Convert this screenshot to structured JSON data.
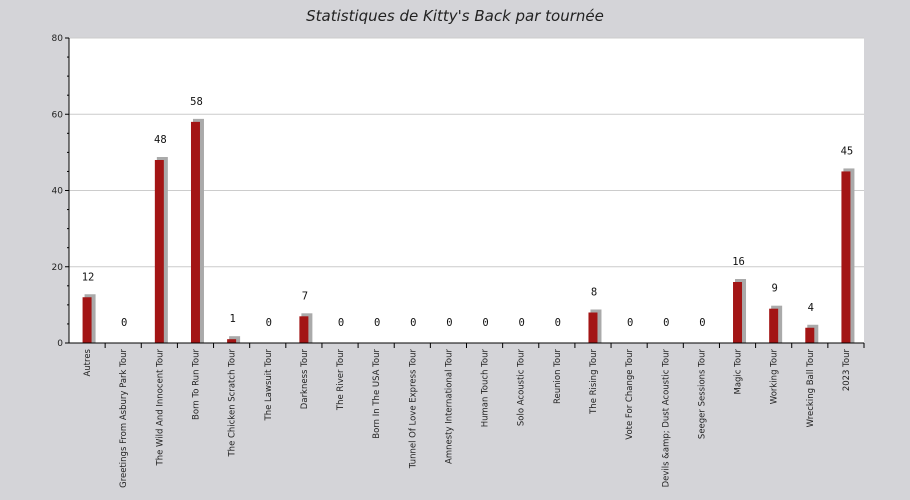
{
  "chart_data": {
    "type": "bar",
    "title": "Statistiques de Kitty's Back par tournée",
    "xlabel": "",
    "ylabel": "",
    "ylim": [
      0,
      80
    ],
    "yticks": [
      "0",
      "20",
      "40",
      "60",
      "80"
    ],
    "grid": "horizontal",
    "categories": [
      "Autres",
      "Greetings From Asbury Park Tour",
      "The Wild And Innocent Tour",
      "Born To Run Tour",
      "The Chicken Scratch Tour",
      "The Lawsuit Tour",
      "Darkness Tour",
      "The River Tour",
      "Born In The USA Tour",
      "Tunnel Of Love Express Tour",
      "Amnesty International Tour",
      "Human Touch Tour",
      "Solo Acoustic Tour",
      "Reunion Tour",
      "The Rising Tour",
      "Vote For Change Tour",
      "Devils &amp; Dust Acoustic Tour",
      "Seeger Sessions Tour",
      "Magic Tour",
      "Working Tour",
      "Wrecking Ball Tour",
      "2023 Tour"
    ],
    "values": [
      12,
      0,
      48,
      58,
      1,
      0,
      7,
      0,
      0,
      0,
      0,
      0,
      0,
      0,
      8,
      0,
      0,
      0,
      16,
      9,
      4,
      45
    ],
    "colors": {
      "bar": "#a31515",
      "bar_shadow": "#aaaaaa",
      "plot_bg": "#ffffff",
      "page_bg": "#d4d4d8",
      "grid": "#cccccc",
      "axis": "#000000"
    }
  }
}
